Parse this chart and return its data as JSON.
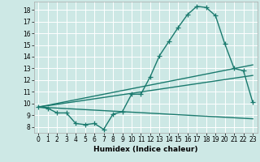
{
  "title": "",
  "xlabel": "Humidex (Indice chaleur)",
  "ylabel": "",
  "bg_color": "#cde8e5",
  "grid_color": "#ffffff",
  "line_color": "#1a7a6e",
  "xlim": [
    -0.5,
    23.5
  ],
  "ylim": [
    7.5,
    18.7
  ],
  "xticks": [
    0,
    1,
    2,
    3,
    4,
    5,
    6,
    7,
    8,
    9,
    10,
    11,
    12,
    13,
    14,
    15,
    16,
    17,
    18,
    19,
    20,
    21,
    22,
    23
  ],
  "yticks": [
    8,
    9,
    10,
    11,
    12,
    13,
    14,
    15,
    16,
    17,
    18
  ],
  "curve_x": [
    0,
    1,
    2,
    3,
    4,
    5,
    6,
    7,
    8,
    9,
    10,
    11,
    12,
    13,
    14,
    15,
    16,
    17,
    18,
    19,
    20,
    21,
    22,
    23
  ],
  "curve_y": [
    9.7,
    9.6,
    9.2,
    9.2,
    8.3,
    8.2,
    8.3,
    7.8,
    9.1,
    9.3,
    10.8,
    10.8,
    12.3,
    14.1,
    15.3,
    16.5,
    17.6,
    18.3,
    18.2,
    17.5,
    15.1,
    13.0,
    12.8,
    10.1
  ],
  "line1_x": [
    0,
    23
  ],
  "line1_y": [
    9.7,
    13.3
  ],
  "line2_x": [
    0,
    23
  ],
  "line2_y": [
    9.7,
    12.4
  ],
  "line3_x": [
    0,
    23
  ],
  "line3_y": [
    9.7,
    8.7
  ],
  "marker_size": 4,
  "line_width": 1.0,
  "tick_fontsize": 5.5,
  "xlabel_fontsize": 6.5
}
